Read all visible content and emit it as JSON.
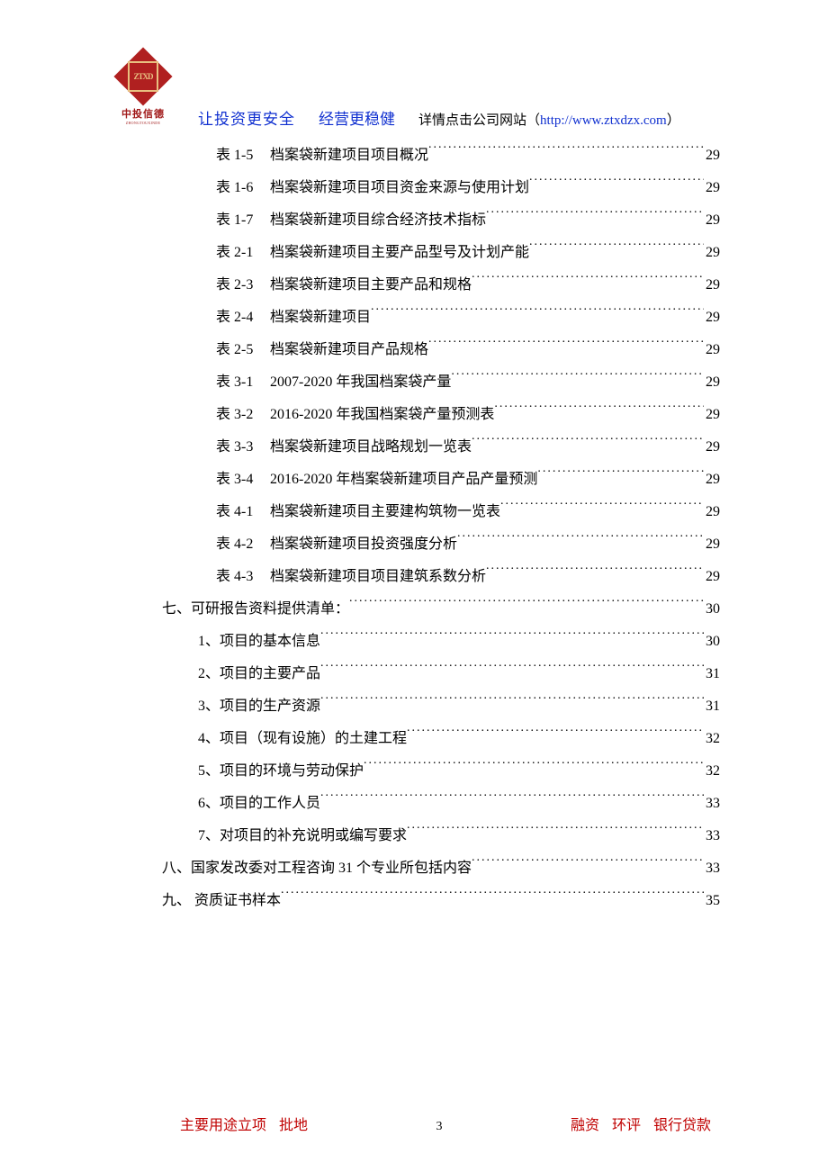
{
  "logo": {
    "abbr": "ZTXD",
    "cn": "中投信德",
    "en": "ZHONGTOUXINDE"
  },
  "header": {
    "slogan1": "让投资更安全",
    "slogan2": "经营更稳健",
    "detail_label": "详情点击公司网站",
    "url_open": "（",
    "url": "http://www.ztxdzx.com",
    "url_close": "）"
  },
  "toc": [
    {
      "level": "table",
      "id": "表 1-5",
      "title": "档案袋新建项目项目概况",
      "page": "29"
    },
    {
      "level": "table",
      "id": "表 1-6",
      "title": "档案袋新建项目项目资金来源与使用计划",
      "page": "29"
    },
    {
      "level": "table",
      "id": "表 1-7",
      "title": "档案袋新建项目综合经济技术指标",
      "page": "29"
    },
    {
      "level": "table",
      "id": "表 2-1",
      "title": "档案袋新建项目主要产品型号及计划产能",
      "page": "29"
    },
    {
      "level": "table",
      "id": "表 2-3",
      "title": "档案袋新建项目主要产品和规格",
      "page": "29"
    },
    {
      "level": "table",
      "id": "表 2-4",
      "title": "档案袋新建项目",
      "page": "29"
    },
    {
      "level": "table",
      "id": "表 2-5",
      "title": "档案袋新建项目产品规格",
      "page": "29"
    },
    {
      "level": "table",
      "id": "表 3-1",
      "title": "2007-2020 年我国档案袋产量",
      "page": "29"
    },
    {
      "level": "table",
      "id": "表 3-2",
      "title": "2016-2020 年我国档案袋产量预测表",
      "page": "29"
    },
    {
      "level": "table",
      "id": "表 3-3",
      "title": "档案袋新建项目战略规划一览表",
      "page": "29"
    },
    {
      "level": "table",
      "id": "表 3-4",
      "title": "2016-2020 年档案袋新建项目产品产量预测",
      "page": "29"
    },
    {
      "level": "table",
      "id": "表 4-1",
      "title": "档案袋新建项目主要建构筑物一览表",
      "page": "29"
    },
    {
      "level": "table",
      "id": "表 4-2",
      "title": "档案袋新建项目投资强度分析",
      "page": "29"
    },
    {
      "level": "table",
      "id": "表 4-3",
      "title": "档案袋新建项目项目建筑系数分析",
      "page": "29"
    },
    {
      "level": "section",
      "title": "七、可研报告资料提供清单：",
      "page": "30"
    },
    {
      "level": "sub",
      "title": "1、项目的基本信息",
      "page": "30"
    },
    {
      "level": "sub",
      "title": "2、项目的主要产品",
      "page": "31"
    },
    {
      "level": "sub",
      "title": "3、项目的生产资源",
      "page": "31"
    },
    {
      "level": "sub",
      "title": "4、项目（现有设施）的土建工程",
      "page": "32"
    },
    {
      "level": "sub",
      "title": "5、项目的环境与劳动保护",
      "page": "32"
    },
    {
      "level": "sub",
      "title": "6、项目的工作人员",
      "page": "33"
    },
    {
      "level": "sub",
      "title": "7、对项目的补充说明或编写要求",
      "page": "33"
    },
    {
      "level": "section",
      "title": "八、国家发改委对工程咨询 31 个专业所包括内容",
      "page": "33"
    },
    {
      "level": "section",
      "title": "九、 资质证书样本",
      "page": "35"
    }
  ],
  "footer": {
    "left1": "主要用途立项",
    "left2": "批地",
    "page_number": "3",
    "right1": "融资",
    "right2": "环评",
    "right3": "银行贷款"
  }
}
